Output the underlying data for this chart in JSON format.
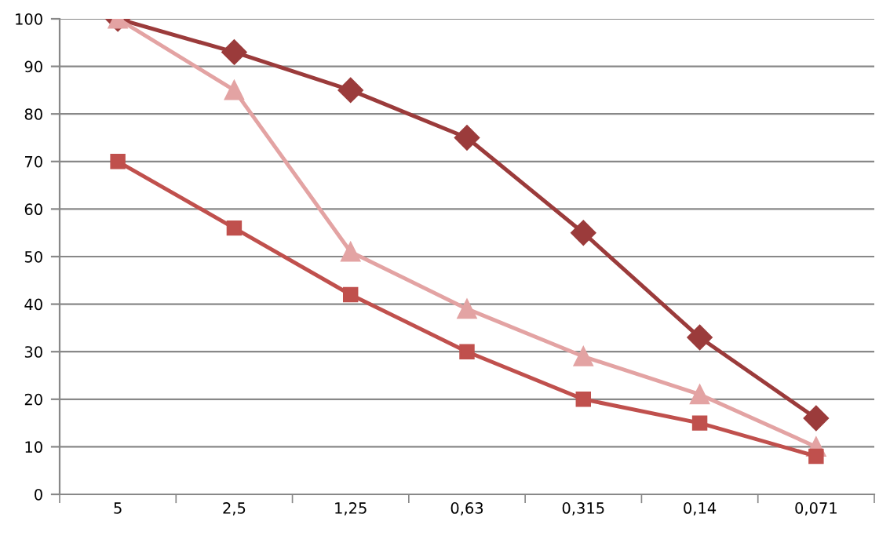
{
  "chart_data": {
    "type": "line",
    "categories": [
      "5",
      "2,5",
      "1,25",
      "0,63",
      "0,315",
      "0,14",
      "0,071"
    ],
    "series": [
      {
        "color": "#9b3b3b",
        "marker": "diamond",
        "values": [
          100,
          93,
          85,
          75,
          55,
          33,
          16
        ]
      },
      {
        "color": "#e3a3a3",
        "marker": "triangle",
        "values": [
          100,
          85,
          51,
          39,
          29,
          21,
          10
        ]
      },
      {
        "color": "#c0504d",
        "marker": "square",
        "values": [
          70,
          56,
          42,
          30,
          20,
          15,
          8
        ]
      }
    ],
    "ylim": [
      0,
      100
    ],
    "yticks": [
      0,
      10,
      20,
      30,
      40,
      50,
      60,
      70,
      80,
      90,
      100
    ],
    "grid": "y",
    "legend": false,
    "line_style": "solid"
  }
}
